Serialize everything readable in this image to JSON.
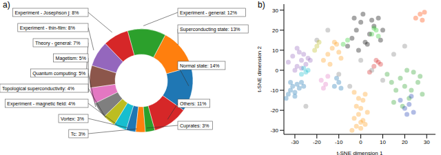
{
  "chart_data": [
    {
      "type": "pie",
      "title": "a)",
      "categories": [
        "Normal state: 14%",
        "Superconducting state: 13%",
        "Experiment - general: 12%",
        "Experiment - Josephson j: 8%",
        "Experiment - thin-film: 8%",
        "Theory - general: 7%",
        "Magetism: 5%",
        "Quantum computing: 5%",
        "Topological superconductivity: 4%",
        "Experiment - magnetic field: 4%",
        "Vortex: 3%",
        "Tc: 3%",
        "Cuprates: 3%",
        "Others: 11%"
      ],
      "values": [
        14,
        13,
        12,
        8,
        8,
        7,
        5,
        5,
        4,
        4,
        3,
        3,
        3,
        11
      ],
      "colors": [
        "#1f77b4",
        "#ff7f0e",
        "#2ca02c",
        "#d62728",
        "#9467bd",
        "#8c564b",
        "#e377c2",
        "#7f7f7f",
        "#bcbd22",
        "#17becf",
        "#1f77b4",
        "#ff7f0e",
        "#2ca02c",
        "#d62728"
      ]
    },
    {
      "type": "scatter",
      "title": "b)",
      "x_label": "t-SNE dimension 1",
      "y_label": "t-SNE dimension 2",
      "xlim": [
        -35,
        34
      ],
      "ylim": [
        -32,
        33
      ],
      "xticks": [
        -30,
        -20,
        -10,
        0,
        10,
        20,
        30
      ],
      "yticks": [
        -30,
        -20,
        -10,
        0,
        10,
        20,
        30
      ],
      "series": [
        {
          "color": "#9467bd",
          "x": [
            -33,
            -31,
            -29,
            -28,
            -27,
            -26,
            -25,
            -24,
            -30,
            -27,
            -23,
            -29
          ],
          "values": [
            4,
            7,
            2,
            9,
            5,
            8,
            3,
            6,
            0,
            1,
            5,
            11
          ]
        },
        {
          "color": "#1f77b4",
          "x": [
            -34,
            -33,
            -32,
            -31,
            -30,
            -29,
            -28,
            -27,
            -32,
            -30,
            -26
          ],
          "values": [
            -14,
            -12,
            -10,
            -8,
            -11,
            -7,
            -9,
            -6,
            -6,
            -13,
            -8
          ]
        },
        {
          "color": "#17becf",
          "x": [
            -27,
            -25,
            -24,
            -26
          ],
          "values": [
            -2,
            -1,
            0,
            1
          ]
        },
        {
          "color": "#ff9f1c",
          "x": [
            -4,
            -2,
            0,
            2,
            -3,
            -1,
            1,
            3,
            -2,
            0,
            -1,
            1,
            -3,
            2,
            0
          ],
          "values": [
            -30,
            -28,
            -29,
            -27,
            -24,
            -22,
            -25,
            -21,
            -18,
            -19,
            -14,
            -15,
            -11,
            -12,
            -26
          ]
        },
        {
          "color": "#ff9f1c",
          "x": [
            -17,
            -15,
            -13,
            -11,
            -9,
            -14,
            -12,
            -10
          ],
          "values": [
            5,
            8,
            11,
            13,
            6,
            3,
            14,
            9
          ]
        },
        {
          "color": "#000000",
          "x": [
            -6,
            -4,
            -2,
            0,
            2,
            4,
            6,
            8,
            10,
            -3,
            1,
            5,
            9,
            3,
            -1
          ],
          "values": [
            12,
            16,
            20,
            24,
            14,
            18,
            22,
            26,
            20,
            26,
            28,
            25,
            15,
            13,
            10
          ]
        },
        {
          "color": "#2ca02c",
          "x": [
            12,
            14,
            16,
            18,
            20,
            22,
            24,
            26,
            28,
            15,
            19,
            23,
            27,
            21
          ],
          "values": [
            -2,
            -6,
            -10,
            -4,
            -8,
            -14,
            -1,
            -6,
            -12,
            -16,
            -18,
            -10,
            -3,
            0
          ]
        },
        {
          "color": "#1f3fb4",
          "x": [
            18,
            20,
            22,
            24,
            21,
            23
          ],
          "values": [
            -15,
            -19,
            -17,
            -21,
            -22,
            -13
          ]
        },
        {
          "color": "#32cd32",
          "x": [
            5,
            7,
            8,
            6,
            -8,
            -6
          ],
          "values": [
            18,
            20,
            17,
            21,
            13,
            15
          ]
        },
        {
          "color": "#d62728",
          "x": [
            6,
            8,
            7,
            9,
            4
          ],
          "values": [
            2,
            4,
            5,
            3,
            -1
          ]
        },
        {
          "color": "#ff4500",
          "x": [
            25,
            27,
            29,
            28
          ],
          "values": [
            26,
            28,
            29,
            25
          ]
        },
        {
          "color": "#1f77b4",
          "x": [
            -12,
            -10,
            -9,
            -11
          ],
          "values": [
            -8,
            -6,
            -9,
            -4
          ]
        },
        {
          "color": "#7f7f7f",
          "x": [
            -20,
            -10,
            0,
            10,
            15,
            -5,
            5,
            -15,
            20,
            -25
          ],
          "values": [
            15,
            -2,
            5,
            -5,
            8,
            -8,
            0,
            20,
            12,
            -18
          ]
        },
        {
          "color": "#e377c2",
          "x": [
            -18,
            -16,
            -15,
            -17
          ],
          "values": [
            -5,
            -7,
            -3,
            -9
          ]
        },
        {
          "color": "#bcbd22",
          "x": [
            -20,
            -19,
            -21
          ],
          "values": [
            12,
            14,
            10
          ]
        }
      ]
    }
  ]
}
